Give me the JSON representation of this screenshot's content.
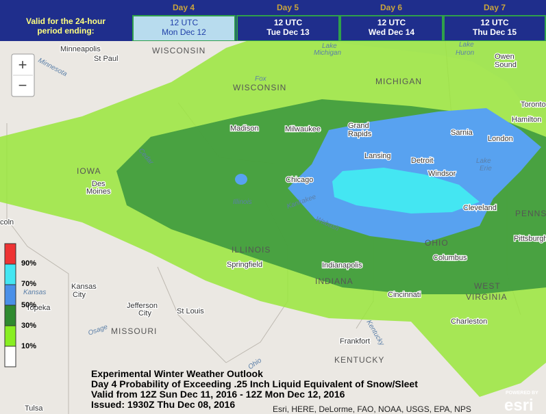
{
  "header": {
    "period_label": [
      "Valid for the 24-hour",
      "period ending:"
    ],
    "days": [
      {
        "day": "Day 4",
        "time": "12 UTC",
        "date": "Mon Dec 12"
      },
      {
        "day": "Day 5",
        "time": "12 UTC",
        "date": "Tue Dec 13"
      },
      {
        "day": "Day 6",
        "time": "12 UTC",
        "date": "Wed Dec 14"
      },
      {
        "day": "Day 7",
        "time": "12 UTC",
        "date": "Thu Dec 15"
      }
    ]
  },
  "zoom": {
    "in": "+",
    "out": "−"
  },
  "legend": {
    "labels": [
      "90%",
      "70%",
      "50%",
      "30%",
      "10%"
    ]
  },
  "places": [
    "Minneapolis",
    "St Paul",
    "WISCONSIN",
    "Minnesota",
    "Lake",
    "Michigan",
    "Lake",
    "Huron",
    "Owen",
    "Sound",
    "MICHIGAN",
    "WISCONSIN",
    "Fox",
    "Madison",
    "Milwaukee",
    "Grand",
    "Rapids",
    "Lansing",
    "Sarnia",
    "London",
    "Toronto",
    "Hamilton",
    "Detroit",
    "Windsor",
    "Lake",
    "Erie",
    "IOWA",
    "Des",
    "Moines",
    "Cedar",
    "Chicago",
    "Illinois",
    "Kankakee",
    "Wabash",
    "Cleveland",
    "OHIO",
    "PENNSY",
    "Pittsburgh",
    "ILLINOIS",
    "Springfield",
    "INDIANA",
    "Indianapolis",
    "Columbus",
    "coln",
    "Kansas",
    "City",
    "Kansas",
    "Topeka",
    "Jefferson",
    "City",
    "St Louis",
    "Osage",
    "MISSOURI",
    "Cincinnati",
    "WEST",
    "VIRGINIA",
    "Charleston",
    "Frankfort",
    "KENTUCKY",
    "Tulsa",
    "Kentucky",
    "Ohio"
  ],
  "caption": [
    "Experimental Winter Weather Outlook",
    "Day 4 Probability of Exceeding .25 Inch Liquid Equivalent of Snow/Sleet",
    "Valid from 12Z Sun Dec 11, 2016 - 12Z Mon Dec 12, 2016",
    "Issued: 1930Z Thu Dec 08, 2016"
  ],
  "attribution": "Esri, HERE, DeLorme, FAO, NOAA, USGS, EPA, NPS",
  "logo": {
    "powered_by": "POWERED BY",
    "name": "esri"
  }
}
